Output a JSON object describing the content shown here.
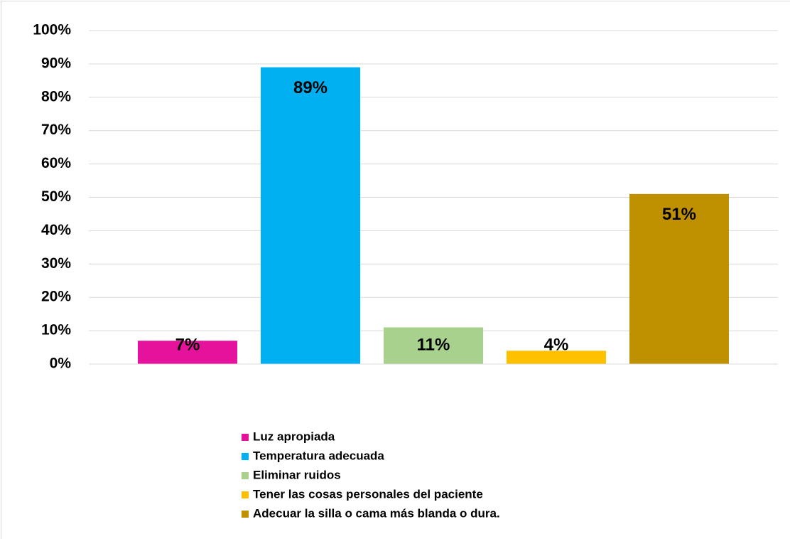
{
  "chart_data": {
    "type": "bar",
    "categories": [
      null
    ],
    "series": [
      {
        "name": "Luz apropiada",
        "color": "#e5139b",
        "values": [
          7
        ],
        "value_labels": [
          "7%"
        ]
      },
      {
        "name": "Temperatura adecuada",
        "color": "#00b0f0",
        "values": [
          89
        ],
        "value_labels": [
          "89%"
        ]
      },
      {
        "name": "Eliminar ruidos",
        "color": "#a9d18e",
        "values": [
          11
        ],
        "value_labels": [
          "11%"
        ]
      },
      {
        "name": "Tener las cosas personales del paciente",
        "color": "#ffc000",
        "values": [
          4
        ],
        "value_labels": [
          "4%"
        ]
      },
      {
        "name": "Adecuar la silla o cama más blanda o dura.",
        "color": "#bf9000",
        "values": [
          51
        ],
        "value_labels": [
          "51%"
        ]
      }
    ],
    "ylim": [
      0,
      100
    ],
    "yticks": [
      {
        "value": 0,
        "label": "0%"
      },
      {
        "value": 10,
        "label": "10%"
      },
      {
        "value": 20,
        "label": "20%"
      },
      {
        "value": 30,
        "label": "30%"
      },
      {
        "value": 40,
        "label": "40%"
      },
      {
        "value": 50,
        "label": "50%"
      },
      {
        "value": 60,
        "label": "60%"
      },
      {
        "value": 70,
        "label": "70%"
      },
      {
        "value": 80,
        "label": "80%"
      },
      {
        "value": 90,
        "label": "90%"
      },
      {
        "value": 100,
        "label": "100%"
      }
    ],
    "grid": true,
    "legend": "bottom"
  }
}
